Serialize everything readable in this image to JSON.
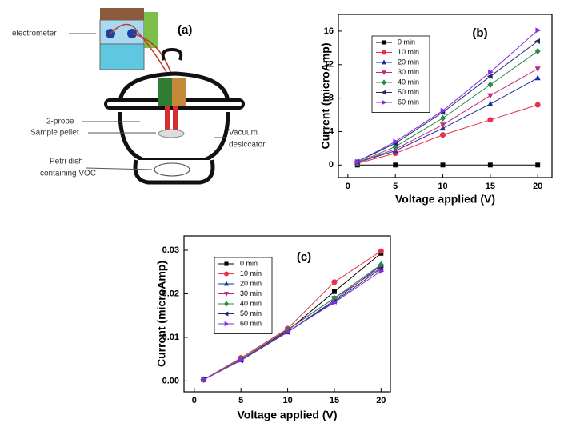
{
  "diagram": {
    "panel_label": "(a)",
    "electrometer": "electrometer",
    "probe": "2-probe",
    "pellet": "Sample pellet",
    "desiccator": [
      "Vacuum",
      "desiccator"
    ],
    "petri": [
      "Petri dish",
      "containing VOC"
    ]
  },
  "chart_data": [
    {
      "type": "line",
      "title": "(b)",
      "xlabel": "Voltage applied (V)",
      "ylabel": "Current (microAmp)",
      "x": [
        1,
        5,
        10,
        15,
        20
      ],
      "xlim": [
        -1,
        21.5
      ],
      "xticks": [
        0,
        5,
        10,
        15,
        20
      ],
      "ylim": [
        -1.5,
        18
      ],
      "yticks": [
        0,
        4,
        8,
        12,
        16
      ],
      "legend": "upper-left",
      "series": [
        {
          "name": "0 min",
          "color": "#000000",
          "marker": "square",
          "values": [
            0,
            0,
            0,
            0,
            0
          ]
        },
        {
          "name": "10 min",
          "color": "#e8304a",
          "marker": "circle",
          "values": [
            0.2,
            1.4,
            3.6,
            5.4,
            7.2
          ]
        },
        {
          "name": "20 min",
          "color": "#1a2f9e",
          "marker": "triangle-up",
          "values": [
            0.3,
            1.7,
            4.4,
            7.3,
            10.4
          ]
        },
        {
          "name": "30 min",
          "color": "#c0287a",
          "marker": "triangle-down",
          "values": [
            0.3,
            1.9,
            4.8,
            8.3,
            11.5
          ]
        },
        {
          "name": "40 min",
          "color": "#2a8a4a",
          "marker": "diamond",
          "values": [
            0.3,
            2.2,
            5.6,
            9.6,
            13.6
          ]
        },
        {
          "name": "50 min",
          "color": "#1f2a6e",
          "marker": "triangle-left",
          "values": [
            0.4,
            2.6,
            6.3,
            10.6,
            14.8
          ]
        },
        {
          "name": "60 min",
          "color": "#8a2be2",
          "marker": "triangle-right",
          "values": [
            0.4,
            2.8,
            6.5,
            11.1,
            16.1
          ]
        }
      ]
    },
    {
      "type": "line",
      "title": "(c)",
      "xlabel": "Voltage applied (V)",
      "ylabel": "Current (microAmp)",
      "x": [
        1,
        5,
        10,
        15,
        20
      ],
      "xlim": [
        -1.1,
        21
      ],
      "xticks": [
        0,
        5,
        10,
        15,
        20
      ],
      "ylim": [
        -0.0025,
        0.0333
      ],
      "yticks": [
        {
          "value": 0,
          "label": "0.00"
        },
        {
          "value": 0.01,
          "label": "0.01"
        },
        {
          "value": 0.02,
          "label": "0.02"
        },
        {
          "value": 0.03,
          "label": "0.03"
        }
      ],
      "legend": "upper-left",
      "series": [
        {
          "name": "0 min",
          "color": "#000000",
          "marker": "square",
          "values": [
            0.0003,
            0.005,
            0.0115,
            0.0205,
            0.0293
          ]
        },
        {
          "name": "10 min",
          "color": "#e8304a",
          "marker": "circle",
          "values": [
            0.0003,
            0.0053,
            0.012,
            0.0227,
            0.0298
          ]
        },
        {
          "name": "20 min",
          "color": "#1a2f9e",
          "marker": "triangle-up",
          "values": [
            0.0003,
            0.0048,
            0.0112,
            0.0185,
            0.0265
          ]
        },
        {
          "name": "30 min",
          "color": "#c0287a",
          "marker": "triangle-down",
          "values": [
            0.0003,
            0.005,
            0.0118,
            0.019,
            0.026
          ]
        },
        {
          "name": "40 min",
          "color": "#2a8a4a",
          "marker": "diamond",
          "values": [
            0.0003,
            0.005,
            0.0117,
            0.019,
            0.0267
          ]
        },
        {
          "name": "50 min",
          "color": "#1f2a6e",
          "marker": "triangle-left",
          "values": [
            0.0003,
            0.0047,
            0.0112,
            0.0182,
            0.0258
          ]
        },
        {
          "name": "60 min",
          "color": "#8a2be2",
          "marker": "triangle-right",
          "values": [
            0.0003,
            0.0048,
            0.0113,
            0.018,
            0.0252
          ]
        }
      ]
    }
  ]
}
